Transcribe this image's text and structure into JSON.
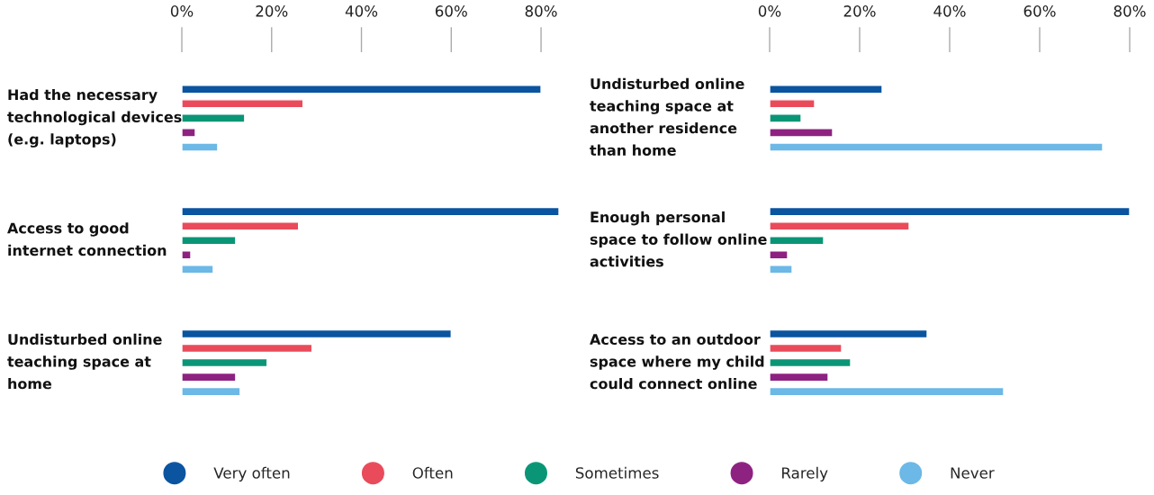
{
  "chart_data": [
    {
      "type": "bar",
      "orientation": "horizontal",
      "categories": [
        "Had the necessary technological devices (e.g. laptops)",
        "Access to good internet connection",
        "Undisturbed online teaching space at home"
      ],
      "xlim": [
        0,
        85
      ],
      "xticks": [
        {
          "value": 0,
          "label": "0%"
        },
        {
          "value": 20,
          "label": "20%"
        },
        {
          "value": 40,
          "label": "40%"
        },
        {
          "value": 60,
          "label": "60%"
        },
        {
          "value": 80,
          "label": "80%"
        }
      ],
      "grid": false,
      "legend": "bottom",
      "series": [
        {
          "name": "Very often",
          "color": "#0a54a0",
          "values": [
            80,
            84,
            60
          ]
        },
        {
          "name": "Often",
          "color": "#e94b5b",
          "values": [
            27,
            26,
            29
          ]
        },
        {
          "name": "Sometimes",
          "color": "#0a9676",
          "values": [
            14,
            12,
            19
          ]
        },
        {
          "name": "Rarely",
          "color": "#8e2281",
          "values": [
            3,
            2,
            12
          ]
        },
        {
          "name": "Never",
          "color": "#6cb8e6",
          "values": [
            8,
            7,
            13
          ]
        }
      ]
    },
    {
      "type": "bar",
      "orientation": "horizontal",
      "categories": [
        "Undisturbed online teaching space at another residence than home",
        "Enough personal space to follow online activities",
        "Access to an outdoor space where my child could connect online"
      ],
      "xlim": [
        0,
        80
      ],
      "xticks": [
        {
          "value": 0,
          "label": "0%"
        },
        {
          "value": 20,
          "label": "20%"
        },
        {
          "value": 40,
          "label": "40%"
        },
        {
          "value": 60,
          "label": "60%"
        },
        {
          "value": 80,
          "label": "80%"
        }
      ],
      "grid": false,
      "series": [
        {
          "color": "#0a54a0",
          "values": [
            25,
            80,
            35
          ]
        },
        {
          "color": "#e94b5b",
          "values": [
            10,
            31,
            16
          ]
        },
        {
          "color": "#0a9676",
          "values": [
            7,
            12,
            18
          ]
        },
        {
          "color": "#8e2281",
          "values": [
            14,
            4,
            13
          ]
        },
        {
          "color": "#6cb8e6",
          "values": [
            74,
            5,
            52
          ]
        }
      ]
    }
  ]
}
